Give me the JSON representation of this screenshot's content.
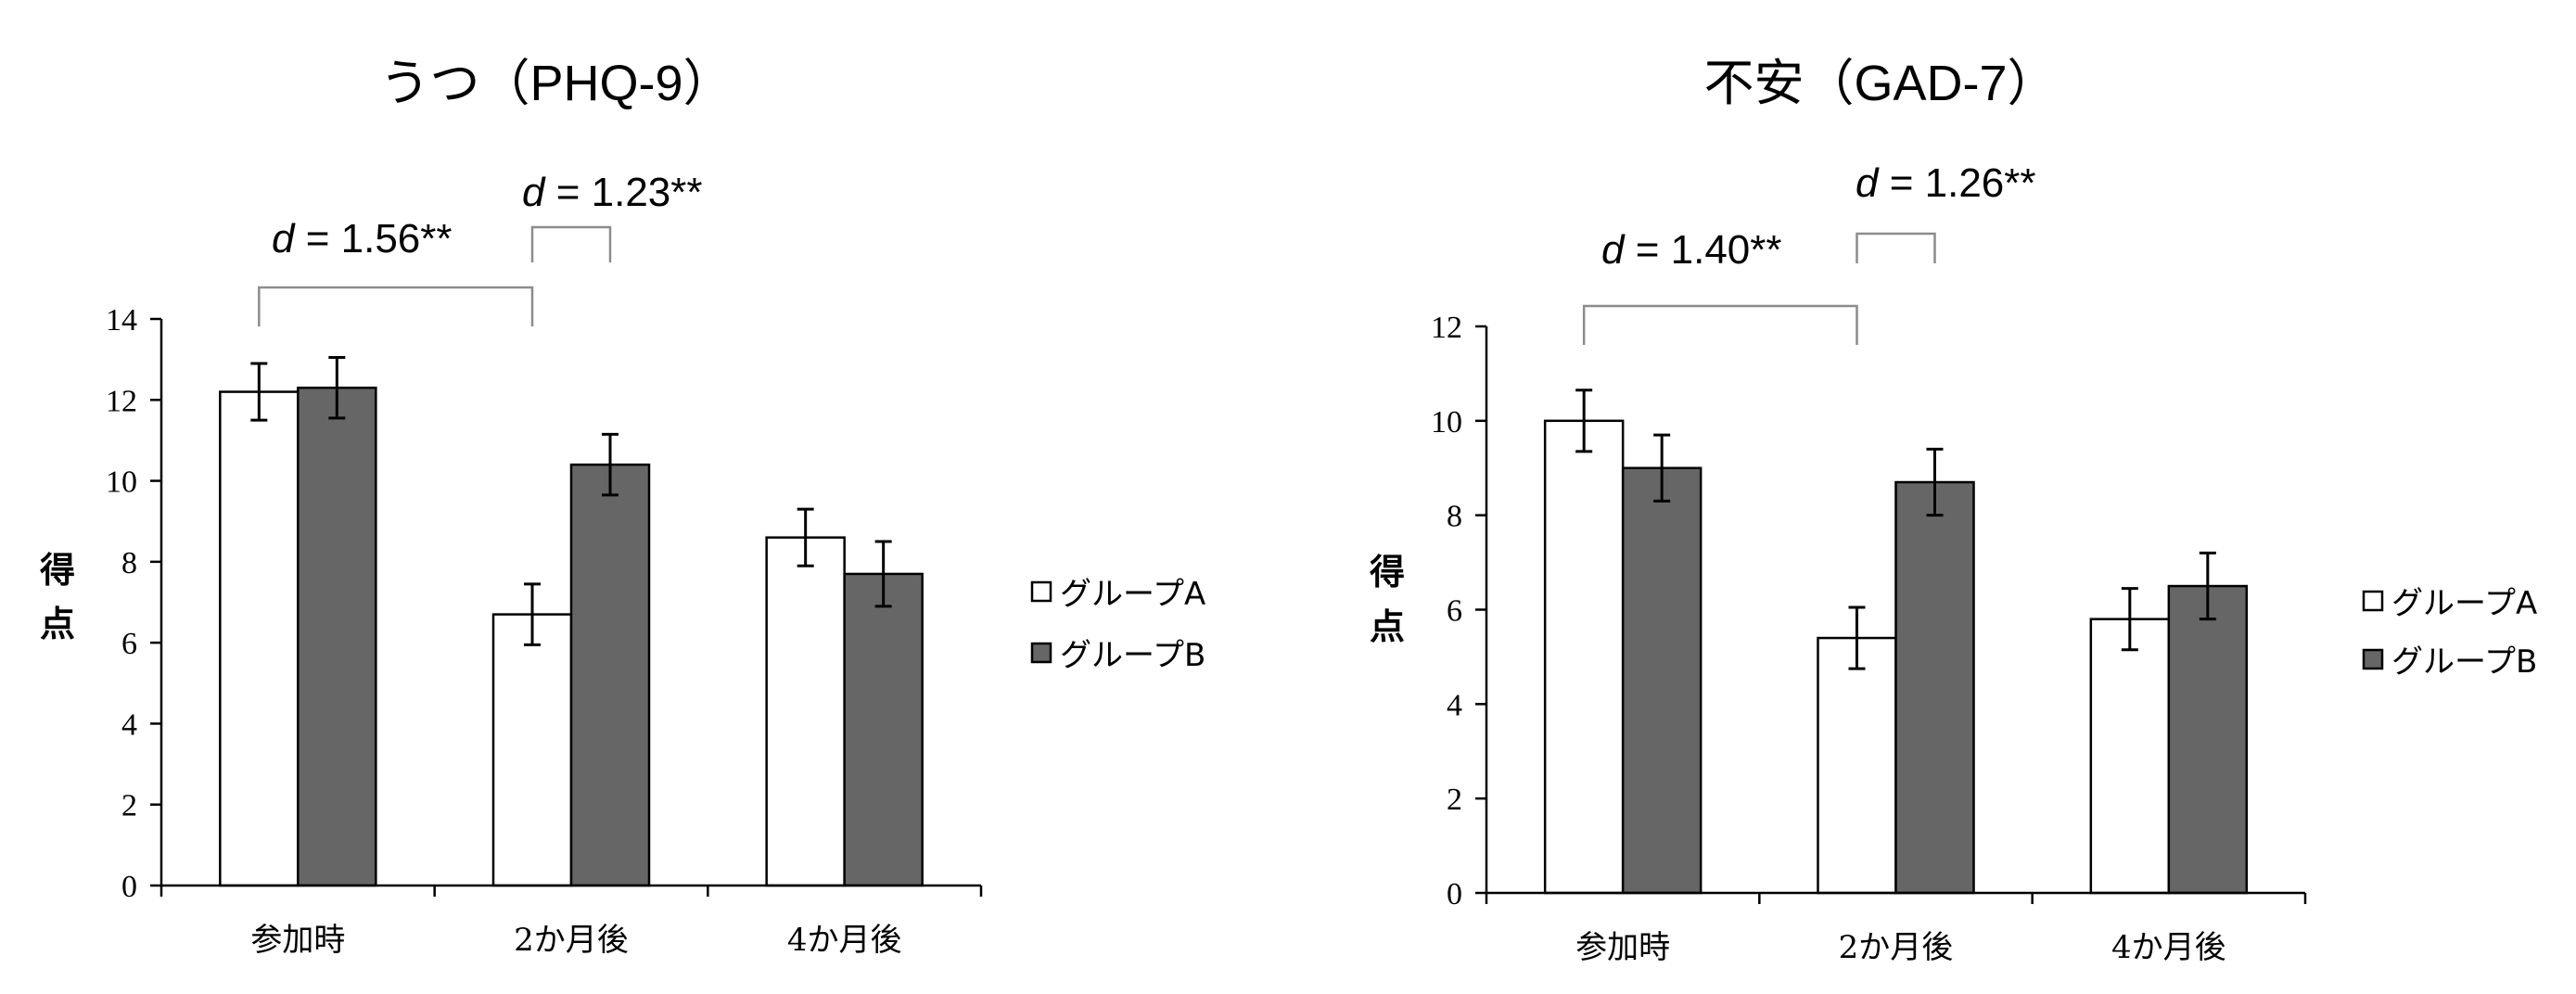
{
  "chart_data": [
    {
      "type": "bar",
      "title": "うつ（PHQ-9）",
      "ylabel_chars": [
        "得",
        "点"
      ],
      "categories": [
        "参加時",
        "2か月後",
        "4か月後"
      ],
      "ylim": [
        0,
        14
      ],
      "yticks": [
        "0",
        "2",
        "4",
        "6",
        "8",
        "10",
        "12",
        "14"
      ],
      "series": [
        {
          "name": "グループA",
          "color": "#ffffff",
          "values": [
            12.2,
            6.7,
            8.6
          ],
          "errors": [
            0.7,
            0.75,
            0.7
          ]
        },
        {
          "name": "グループB",
          "color": "#666666",
          "values": [
            12.3,
            10.4,
            7.7
          ],
          "errors": [
            0.75,
            0.75,
            0.8
          ]
        }
      ],
      "annotations": [
        {
          "prefix": "d",
          "text": " = 1.56**",
          "from_category": 0,
          "to_category": 1
        },
        {
          "prefix": "d",
          "text": " = 1.23**",
          "from_category": 1,
          "to_category": 1
        }
      ]
    },
    {
      "type": "bar",
      "title": "不安（GAD-7）",
      "ylabel_chars": [
        "得",
        "点"
      ],
      "categories": [
        "参加時",
        "2か月後",
        "4か月後"
      ],
      "ylim": [
        0,
        12
      ],
      "yticks": [
        "0",
        "2",
        "4",
        "6",
        "8",
        "10",
        "12"
      ],
      "series": [
        {
          "name": "グループA",
          "color": "#ffffff",
          "values": [
            10.0,
            5.4,
            5.8
          ],
          "errors": [
            0.65,
            0.65,
            0.65
          ]
        },
        {
          "name": "グループB",
          "color": "#666666",
          "values": [
            9.0,
            8.7,
            6.5
          ],
          "errors": [
            0.7,
            0.7,
            0.7
          ]
        }
      ],
      "annotations": [
        {
          "prefix": "d",
          "text": " = 1.40**",
          "from_category": 0,
          "to_category": 1
        },
        {
          "prefix": "d",
          "text": " = 1.26**",
          "from_category": 1,
          "to_category": 1
        }
      ]
    }
  ]
}
